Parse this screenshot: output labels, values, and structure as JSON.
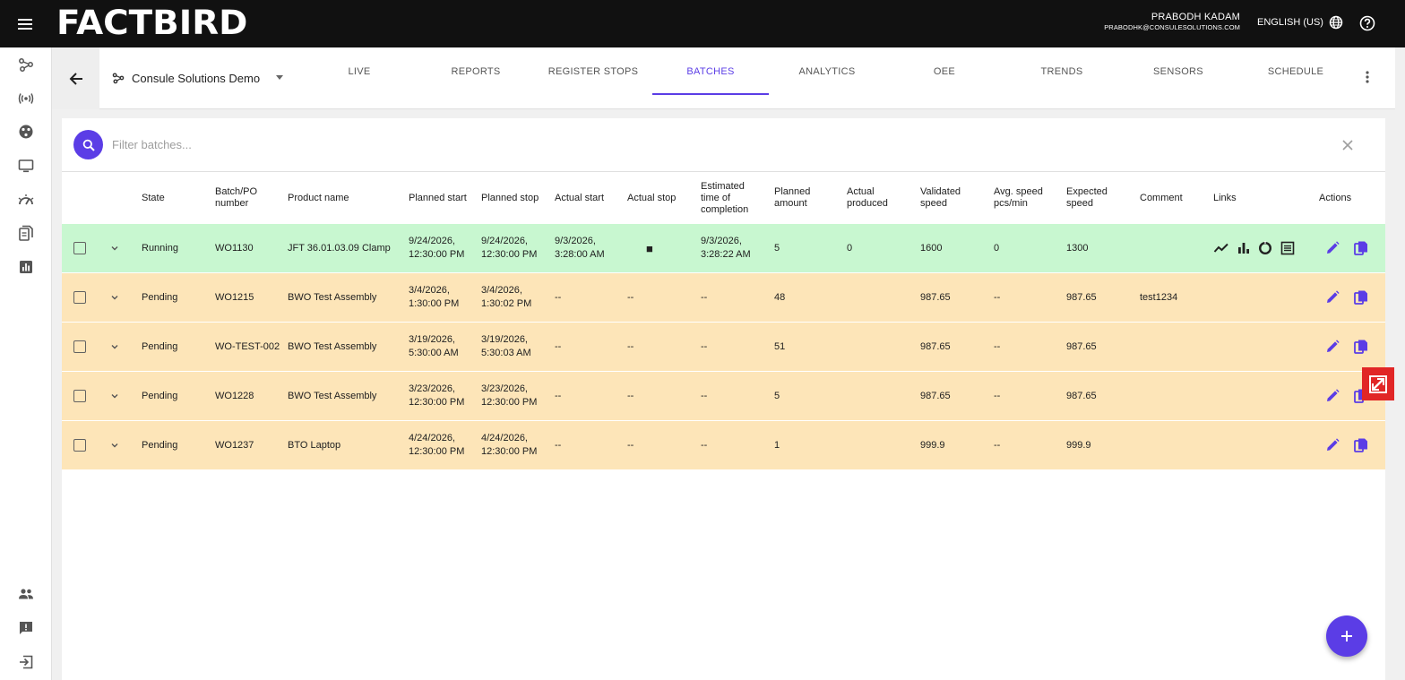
{
  "app": {
    "logo_text": "FACTBIRD",
    "user_name": "PRABODH KADAM",
    "user_email": "PRABODHK@CONSULESOLUTIONS.COM",
    "language": "ENGLISH (US)"
  },
  "subbar": {
    "line_name": "Consule Solutions Demo",
    "tabs": [
      {
        "label": "LIVE",
        "active": false
      },
      {
        "label": "REPORTS",
        "active": false
      },
      {
        "label": "REGISTER STOPS",
        "active": false
      },
      {
        "label": "BATCHES",
        "active": true
      },
      {
        "label": "ANALYTICS",
        "active": false
      },
      {
        "label": "OEE",
        "active": false
      },
      {
        "label": "TRENDS",
        "active": false
      },
      {
        "label": "SENSORS",
        "active": false
      },
      {
        "label": "SCHEDULE",
        "active": false
      }
    ]
  },
  "filter": {
    "placeholder": "Filter batches...",
    "value": ""
  },
  "table": {
    "headers": {
      "state": "State",
      "batch": "Batch/PO number",
      "product": "Product name",
      "planned_start": "Planned start",
      "planned_stop": "Planned stop",
      "actual_start": "Actual start",
      "actual_stop": "Actual stop",
      "est_completion": "Estimated time of completion",
      "planned_amount": "Planned amount",
      "actual_produced": "Actual produced",
      "validated_speed": "Validated speed",
      "avg_speed": "Avg. speed pcs/min",
      "expected_speed": "Expected speed",
      "comment": "Comment",
      "links": "Links",
      "actions": "Actions"
    },
    "rows": [
      {
        "state": "Running",
        "batch": "WO1130",
        "product": "JFT 36.01.03.09 Clamp",
        "planned_start": "9/24/2026, 12:30:00 PM",
        "planned_stop": "9/24/2026, 12:30:00 PM",
        "actual_start": "9/3/2026, 3:28:00 AM",
        "actual_stop": "■",
        "est_completion": "9/3/2026, 3:28:22 AM",
        "planned_amount": "5",
        "actual_produced": "0",
        "validated_speed": "1600",
        "avg_speed": "0",
        "expected_speed": "1300",
        "comment": "",
        "has_links": true
      },
      {
        "state": "Pending",
        "batch": "WO1215",
        "product": "BWO Test Assembly",
        "planned_start": "3/4/2026, 1:30:00 PM",
        "planned_stop": "3/4/2026, 1:30:02 PM",
        "actual_start": "--",
        "actual_stop": "--",
        "est_completion": "--",
        "planned_amount": "48",
        "actual_produced": "",
        "validated_speed": "987.65",
        "avg_speed": "--",
        "expected_speed": "987.65",
        "comment": "test1234",
        "has_links": false
      },
      {
        "state": "Pending",
        "batch": "WO-TEST-002",
        "product": "BWO Test Assembly",
        "planned_start": "3/19/2026, 5:30:00 AM",
        "planned_stop": "3/19/2026, 5:30:03 AM",
        "actual_start": "--",
        "actual_stop": "--",
        "est_completion": "--",
        "planned_amount": "51",
        "actual_produced": "",
        "validated_speed": "987.65",
        "avg_speed": "--",
        "expected_speed": "987.65",
        "comment": "",
        "has_links": false
      },
      {
        "state": "Pending",
        "batch": "WO1228",
        "product": "BWO Test Assembly",
        "planned_start": "3/23/2026, 12:30:00 PM",
        "planned_stop": "3/23/2026, 12:30:00 PM",
        "actual_start": "--",
        "actual_stop": "--",
        "est_completion": "--",
        "planned_amount": "5",
        "actual_produced": "",
        "validated_speed": "987.65",
        "avg_speed": "--",
        "expected_speed": "987.65",
        "comment": "",
        "has_links": false
      },
      {
        "state": "Pending",
        "batch": "WO1237",
        "product": "BTO Laptop",
        "planned_start": "4/24/2026, 12:30:00 PM",
        "planned_stop": "4/24/2026, 12:30:00 PM",
        "actual_start": "--",
        "actual_stop": "--",
        "est_completion": "--",
        "planned_amount": "1",
        "actual_produced": "",
        "validated_speed": "999.9",
        "avg_speed": "--",
        "expected_speed": "999.9",
        "comment": "",
        "has_links": false
      }
    ]
  },
  "colors": {
    "accent": "#5b3de6",
    "running_row": "#c8f7d0",
    "pending_row": "#fde5b8",
    "topbar": "#111111",
    "badge_red": "#e12626"
  },
  "icons": {
    "menu": "hamburger-icon",
    "globe": "globe-icon",
    "help": "help-circle-icon",
    "back": "arrow-left-icon",
    "line": "share-nodes-icon",
    "more": "more-vertical-icon",
    "search": "search-icon",
    "clear": "close-icon",
    "edit": "pencil-icon",
    "copy": "copy-icon",
    "add": "plus-icon",
    "links": [
      "line-chart-icon",
      "bar-chart-icon",
      "donut-icon",
      "list-icon"
    ],
    "rail": [
      "share-nodes-icon",
      "sensor-signal-icon",
      "palette-icon",
      "monitor-icon",
      "gauge-icon",
      "files-icon",
      "analytics-icon",
      "people-icon",
      "feedback-icon",
      "logout-icon"
    ]
  }
}
